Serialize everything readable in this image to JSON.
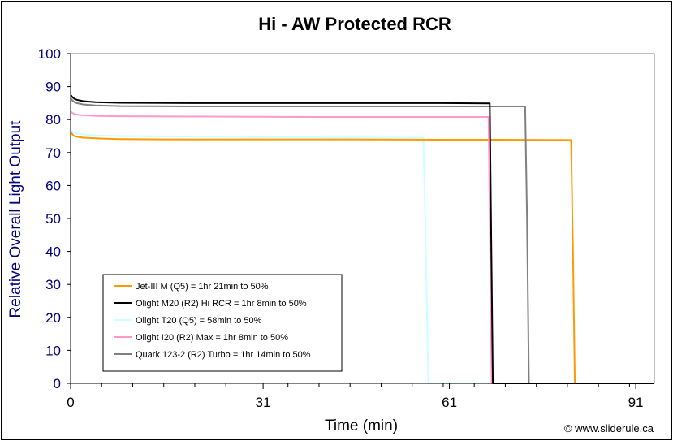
{
  "chart_data": {
    "type": "line",
    "title": "Hi - AW Protected RCR",
    "xlabel": "Time (min)",
    "ylabel": "Relative Overall Light Output",
    "xlim": [
      0,
      94
    ],
    "ylim": [
      0,
      100
    ],
    "x_ticks": [
      0,
      31,
      61,
      91
    ],
    "y_ticks": [
      0,
      10,
      20,
      30,
      40,
      50,
      60,
      70,
      80,
      90,
      100
    ],
    "grid": false,
    "legend_position": "bottom-left",
    "credit": "© www.sliderule.ca",
    "series": [
      {
        "name": "Jet-III M (Q5) = 1hr 21min to 50%",
        "color": "#FF9900",
        "x": [
          0,
          0.3,
          0.6,
          1,
          2,
          4,
          8,
          15,
          30,
          45,
          60,
          70,
          80,
          80.6,
          80.9,
          81.2,
          94
        ],
        "y": [
          76.5,
          75.5,
          75,
          74.8,
          74.5,
          74.3,
          74.1,
          74,
          74,
          74,
          73.9,
          73.9,
          73.8,
          73.8,
          40,
          0,
          0
        ]
      },
      {
        "name": "Olight M20 (R2) Hi RCR = 1hr 8min to 50%",
        "color": "#000000",
        "x": [
          0,
          0.3,
          0.6,
          1,
          2,
          4,
          8,
          20,
          40,
          60,
          67.5,
          67.7,
          68,
          94
        ],
        "y": [
          87.5,
          86.8,
          86.3,
          86,
          85.6,
          85.3,
          85.1,
          85,
          85,
          85,
          84.9,
          50,
          0,
          0
        ]
      },
      {
        "name": "Olight T20 (Q5) = 58min to 50%",
        "color": "#CCFFFF",
        "x": [
          0,
          0.5,
          1,
          2,
          4,
          8,
          20,
          40,
          56,
          56.8,
          57.2,
          57.6,
          94
        ],
        "y": [
          77,
          76,
          75.8,
          75.5,
          75.2,
          75,
          74.8,
          74.6,
          74.5,
          74.4,
          40,
          0,
          0
        ]
      },
      {
        "name": "Olight I20 (R2) Max = 1hr 8min to 50%",
        "color": "#FF99CC",
        "x": [
          0,
          0.3,
          0.6,
          1,
          2,
          4,
          8,
          20,
          40,
          60,
          67.3,
          67.5,
          67.8,
          94
        ],
        "y": [
          82.5,
          82,
          81.7,
          81.5,
          81.3,
          81.1,
          81,
          80.9,
          80.8,
          80.8,
          80.8,
          50,
          0,
          0
        ]
      },
      {
        "name": "Quark 123-2 (R2) Turbo = 1hr 14min to 50%",
        "color": "#808080",
        "x": [
          0,
          0.3,
          0.6,
          1,
          2,
          4,
          8,
          20,
          40,
          60,
          73.2,
          73.5,
          73.8,
          94
        ],
        "y": [
          86.5,
          85.8,
          85.3,
          85,
          84.6,
          84.3,
          84.1,
          84,
          84,
          84,
          84,
          50,
          0,
          0
        ]
      }
    ]
  }
}
